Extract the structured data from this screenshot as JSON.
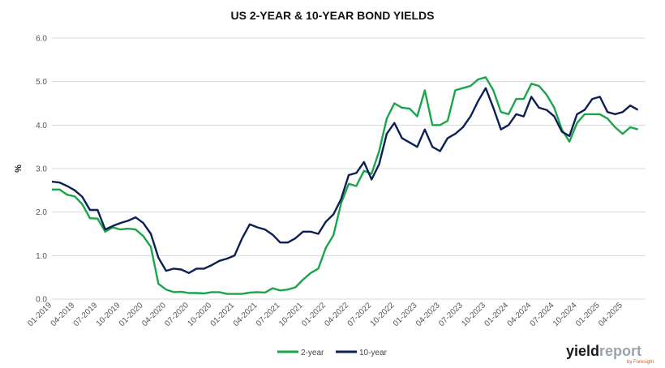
{
  "chart_data": {
    "type": "line",
    "title": "US 2-YEAR & 10-YEAR BOND YIELDS",
    "ylabel": "%",
    "xlabel": "",
    "ylim": [
      0,
      6
    ],
    "yticks": [
      "0.0",
      "1.0",
      "2.0",
      "3.0",
      "4.0",
      "5.0",
      "6.0"
    ],
    "xlim": [
      "2019-01",
      "2025-07"
    ],
    "xticks": [
      "01-2019",
      "04-2019",
      "07-2019",
      "10-2019",
      "01-2020",
      "04-2020",
      "07-2020",
      "10-2020",
      "01-2021",
      "04-2021",
      "07-2021",
      "10-2021",
      "01-2022",
      "04-2022",
      "07-2022",
      "10-2022",
      "01-2023",
      "04-2023",
      "07-2023",
      "10-2023",
      "01-2024",
      "04-2024",
      "07-2024",
      "10-2024",
      "01-2025",
      "04-2025"
    ],
    "grid": true,
    "legend_position": "bottom-center",
    "series": [
      {
        "name": "2-year",
        "color": "#19a64b",
        "x": [
          "2019-01",
          "2019-02",
          "2019-03",
          "2019-04",
          "2019-05",
          "2019-06",
          "2019-07",
          "2019-08",
          "2019-09",
          "2019-10",
          "2019-11",
          "2019-12",
          "2020-01",
          "2020-02",
          "2020-03",
          "2020-04",
          "2020-05",
          "2020-06",
          "2020-07",
          "2020-08",
          "2020-09",
          "2020-10",
          "2020-11",
          "2020-12",
          "2021-01",
          "2021-02",
          "2021-03",
          "2021-04",
          "2021-05",
          "2021-06",
          "2021-07",
          "2021-08",
          "2021-09",
          "2021-10",
          "2021-11",
          "2021-12",
          "2022-01",
          "2022-02",
          "2022-03",
          "2022-04",
          "2022-05",
          "2022-06",
          "2022-07",
          "2022-08",
          "2022-09",
          "2022-10",
          "2022-11",
          "2022-12",
          "2023-01",
          "2023-02",
          "2023-03",
          "2023-04",
          "2023-05",
          "2023-06",
          "2023-07",
          "2023-08",
          "2023-09",
          "2023-10",
          "2023-11",
          "2023-12",
          "2024-01",
          "2024-02",
          "2024-03",
          "2024-04",
          "2024-05",
          "2024-06",
          "2024-07",
          "2024-08",
          "2024-09",
          "2024-10",
          "2024-11",
          "2024-12",
          "2025-01",
          "2025-02",
          "2025-03",
          "2025-04",
          "2025-05",
          "2025-06"
        ],
        "values": [
          2.52,
          2.52,
          2.4,
          2.36,
          2.18,
          1.86,
          1.85,
          1.55,
          1.65,
          1.6,
          1.62,
          1.6,
          1.45,
          1.2,
          0.35,
          0.22,
          0.16,
          0.17,
          0.14,
          0.14,
          0.13,
          0.16,
          0.16,
          0.12,
          0.12,
          0.12,
          0.15,
          0.16,
          0.15,
          0.25,
          0.2,
          0.22,
          0.27,
          0.45,
          0.6,
          0.7,
          1.18,
          1.47,
          2.2,
          2.65,
          2.6,
          2.95,
          2.88,
          3.4,
          4.15,
          4.5,
          4.4,
          4.38,
          4.2,
          4.8,
          4.0,
          4.0,
          4.1,
          4.8,
          4.85,
          4.9,
          5.05,
          5.1,
          4.8,
          4.3,
          4.25,
          4.6,
          4.6,
          4.95,
          4.9,
          4.7,
          4.4,
          3.9,
          3.62,
          4.05,
          4.25,
          4.25,
          4.25,
          4.15,
          3.95,
          3.8,
          3.95,
          3.9
        ]
      },
      {
        "name": "10-year",
        "color": "#0d1f54",
        "x": [
          "2019-01",
          "2019-02",
          "2019-03",
          "2019-04",
          "2019-05",
          "2019-06",
          "2019-07",
          "2019-08",
          "2019-09",
          "2019-10",
          "2019-11",
          "2019-12",
          "2020-01",
          "2020-02",
          "2020-03",
          "2020-04",
          "2020-05",
          "2020-06",
          "2020-07",
          "2020-08",
          "2020-09",
          "2020-10",
          "2020-11",
          "2020-12",
          "2021-01",
          "2021-02",
          "2021-03",
          "2021-04",
          "2021-05",
          "2021-06",
          "2021-07",
          "2021-08",
          "2021-09",
          "2021-10",
          "2021-11",
          "2021-12",
          "2022-01",
          "2022-02",
          "2022-03",
          "2022-04",
          "2022-05",
          "2022-06",
          "2022-07",
          "2022-08",
          "2022-09",
          "2022-10",
          "2022-11",
          "2022-12",
          "2023-01",
          "2023-02",
          "2023-03",
          "2023-04",
          "2023-05",
          "2023-06",
          "2023-07",
          "2023-08",
          "2023-09",
          "2023-10",
          "2023-11",
          "2023-12",
          "2024-01",
          "2024-02",
          "2024-03",
          "2024-04",
          "2024-05",
          "2024-06",
          "2024-07",
          "2024-08",
          "2024-09",
          "2024-10",
          "2024-11",
          "2024-12",
          "2025-01",
          "2025-02",
          "2025-03",
          "2025-04",
          "2025-05",
          "2025-06"
        ],
        "values": [
          2.7,
          2.68,
          2.6,
          2.5,
          2.35,
          2.05,
          2.05,
          1.6,
          1.68,
          1.75,
          1.8,
          1.88,
          1.75,
          1.5,
          0.95,
          0.65,
          0.7,
          0.68,
          0.6,
          0.7,
          0.7,
          0.78,
          0.88,
          0.93,
          1.0,
          1.4,
          1.72,
          1.65,
          1.6,
          1.48,
          1.3,
          1.3,
          1.4,
          1.55,
          1.55,
          1.5,
          1.78,
          1.95,
          2.3,
          2.85,
          2.9,
          3.15,
          2.75,
          3.1,
          3.8,
          4.05,
          3.7,
          3.6,
          3.5,
          3.9,
          3.5,
          3.4,
          3.7,
          3.8,
          3.95,
          4.2,
          4.55,
          4.85,
          4.4,
          3.9,
          4.0,
          4.25,
          4.2,
          4.65,
          4.4,
          4.35,
          4.2,
          3.85,
          3.75,
          4.25,
          4.35,
          4.6,
          4.65,
          4.3,
          4.25,
          4.3,
          4.45,
          4.35
        ]
      }
    ]
  },
  "brand": {
    "logo_part1": "yield",
    "logo_part2": "report",
    "logo_sub": "by Foresight"
  }
}
